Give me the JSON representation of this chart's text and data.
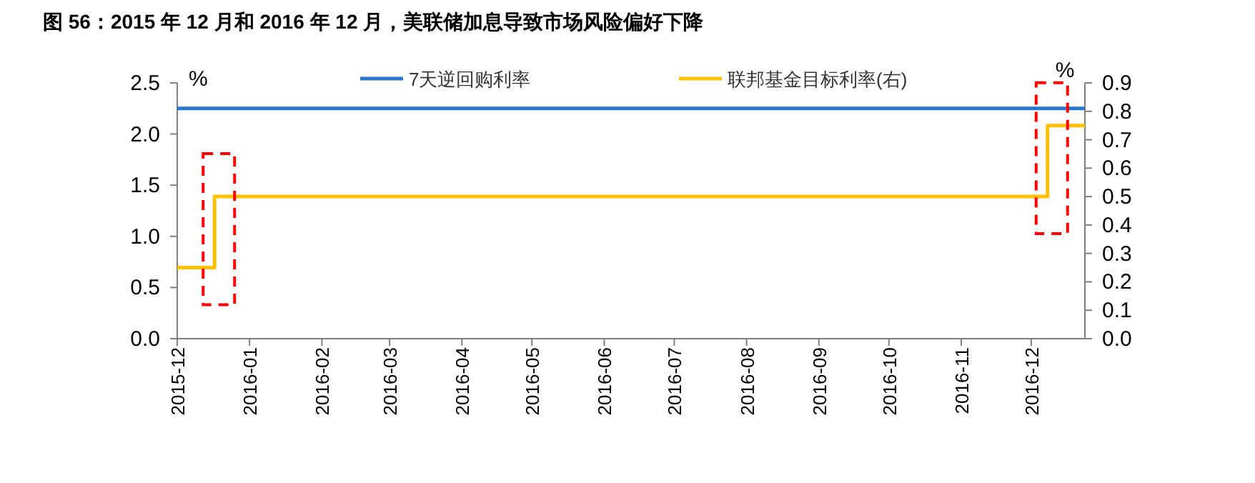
{
  "chart_data": {
    "type": "step",
    "title": "图 56：2015 年 12 月和 2016 年 12 月，美联储加息导致市场风险偏好下降",
    "ylabel": "%",
    "y2label": "%",
    "series": [
      {
        "name": "7天逆回购利率",
        "color": "#2878d0",
        "x": [
          "2015-12-01",
          "2016-12-24"
        ],
        "values": [
          2.25,
          2.25
        ]
      },
      {
        "name": "联邦基金目标利率(右)",
        "color": "#ffc000",
        "axis": "y2",
        "x": [
          "2015-12-01",
          "2015-12-17",
          "2016-12-08",
          "2016-12-24"
        ],
        "values": [
          0.25,
          0.5,
          0.75,
          0.75
        ]
      }
    ],
    "xlim": [
      "2015-12-01",
      "2016-12-24"
    ],
    "xticks": [
      "2015-12",
      "2016-01",
      "2016-02",
      "2016-03",
      "2016-04",
      "2016-05",
      "2016-06",
      "2016-07",
      "2016-08",
      "2016-09",
      "2016-10",
      "2016-11",
      "2016-12"
    ],
    "ylim": [
      0,
      2.5
    ],
    "yticks": [
      {
        "value": 0,
        "label": "0.0"
      },
      {
        "value": 0.5,
        "label": "0.5"
      },
      {
        "value": 1,
        "label": "1.0"
      },
      {
        "value": 1.5,
        "label": "1.5"
      },
      {
        "value": 2,
        "label": "2.0"
      },
      {
        "value": 2.5,
        "label": "2.5"
      }
    ],
    "y2lim": [
      0,
      0.9
    ],
    "y2ticks": [
      {
        "value": 0,
        "label": "0.0"
      },
      0.1,
      0.2,
      0.3,
      0.4,
      0.5,
      0.6,
      0.7,
      0.8,
      0.9
    ],
    "legend": "top",
    "grid": false
  }
}
